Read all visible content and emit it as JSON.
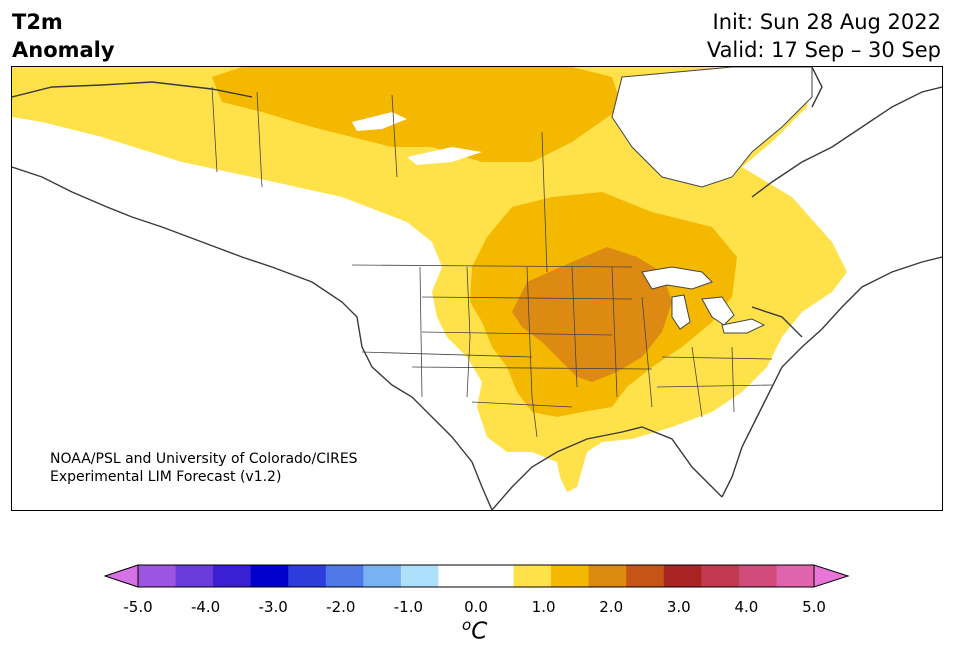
{
  "title": {
    "variable": "T2m",
    "subtitle": "Anomaly",
    "init": "Init: Sun 28 Aug 2022",
    "valid": "Valid: 17 Sep – 30 Sep"
  },
  "credit": {
    "line1": "NOAA/PSL and University of Colorado/CIRES",
    "line2": "Experimental LIM Forecast (v1.2)"
  },
  "map": {
    "region": "North America",
    "shading_levels": [
      {
        "range": "0.5–1.0",
        "color": "#ffe24a"
      },
      {
        "range": "1.0–1.5",
        "color": "#f4b800"
      },
      {
        "range": "1.5–2.0",
        "color": "#dd8a12"
      }
    ]
  },
  "colorbar": {
    "colors": [
      "#d671e8",
      "#9b55e0",
      "#6a3ddb",
      "#3a1fd4",
      "#0000cc",
      "#2d3ddb",
      "#4d78e6",
      "#79b2f2",
      "#aee0fb",
      "#ffffff",
      "#ffffff",
      "#ffe24a",
      "#f4b800",
      "#dd8a12",
      "#c45516",
      "#a82424",
      "#c23a4f",
      "#d04b7a",
      "#e064ad",
      "#e876d8"
    ],
    "tick_labels": [
      "-5.0",
      "-4.0",
      "-3.0",
      "-2.0",
      "-1.0",
      "0.0",
      "1.0",
      "2.0",
      "3.0",
      "4.0",
      "5.0"
    ],
    "unit_base": "C",
    "unit_sup": "o"
  }
}
